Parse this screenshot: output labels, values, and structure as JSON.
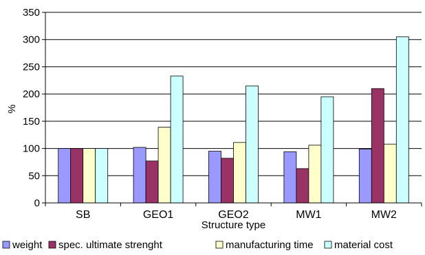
{
  "chart_data": {
    "type": "bar",
    "xlabel": "Structure type",
    "ylabel": "%",
    "ylim": [
      0,
      350
    ],
    "yticks": [
      0,
      50,
      100,
      150,
      200,
      250,
      300,
      350
    ],
    "grid": true,
    "legend_position": "bottom",
    "categories": [
      "SB",
      "GEO1",
      "GEO2",
      "MW1",
      "MW2"
    ],
    "series": [
      {
        "name": "weight",
        "color": "#9999ff",
        "values": [
          100,
          102,
          95,
          94,
          99
        ]
      },
      {
        "name": "spec. ultimate strenght",
        "color": "#993366",
        "values": [
          100,
          77,
          82,
          63,
          210
        ]
      },
      {
        "name": "manufacturing time",
        "color": "#ffffcc",
        "values": [
          100,
          139,
          111,
          106,
          108
        ]
      },
      {
        "name": "material cost",
        "color": "#ccffff",
        "values": [
          100,
          233,
          215,
          195,
          305
        ]
      }
    ]
  }
}
